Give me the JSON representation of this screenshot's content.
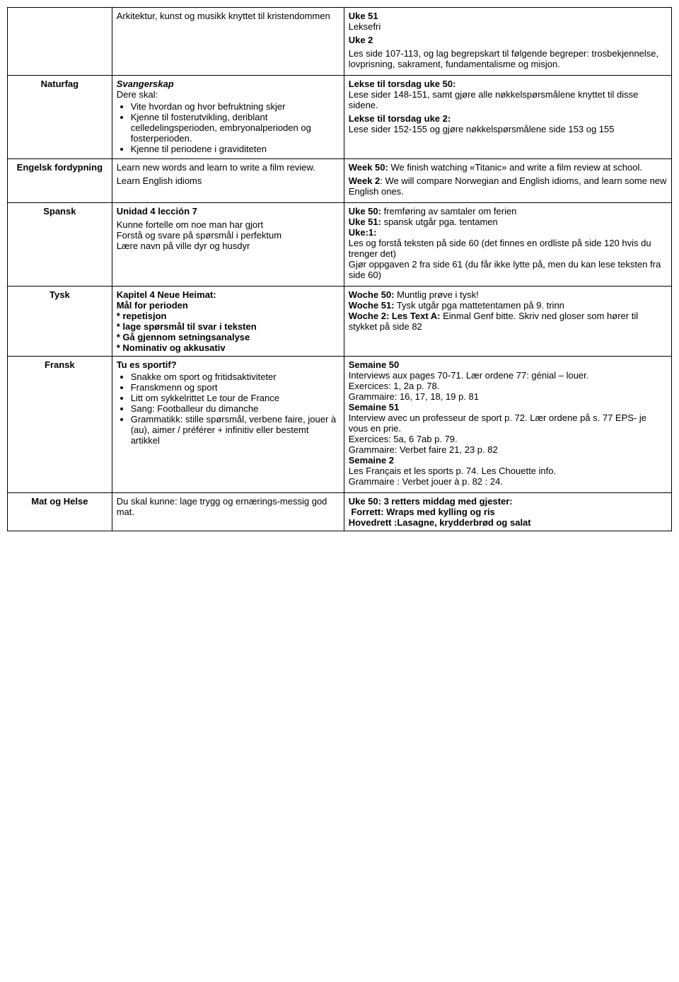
{
  "rows": [
    {
      "subject": "",
      "col2_html": "Arkitektur, kunst og musikk knyttet til kristendommen",
      "col3_html": "<p><span class='b'>Uke 51</span><br>Leksefri</p><p class='b'>Uke 2</p><p>Les side 107-113, og lag begrepskart til følgende begreper: trosbekjennelse, lovprisning, sakrament, fundamentalisme og misjon.</p>"
    },
    {
      "subject": "Naturfag",
      "col2_html": "<span class='b i'>Svangerskap</span><br>Dere skal:<ul><li>Vite hvordan og hvor befruktning skjer</li><li>Kjenne til fosterutvikling, deriblant celledelingsperioden, embryonalperioden og fosterperioden.</li><li>Kjenne til periodene i graviditeten</li></ul>",
      "col3_html": "<p><span class='b'>Lekse til torsdag uke 50:</span><br>Lese sider 148-151, samt gjøre alle nøkkelspørsmålene knyttet til disse sidene.</p><p><span class='b'>Lekse til torsdag uke 2:</span><br>Lese sider 152-155 og gjøre nøkkelspørsmålene side 153 og 155</p>"
    },
    {
      "subject": "Engelsk fordypning",
      "col2_html": "<p>Learn new words and learn to write a film review.</p><p>Learn English idioms</p>",
      "col3_html": "<p><span class='b'>Week 50:</span> We finish watching «Titanic» and write a film review at school.</p><p><span class='b'>Week 2</span>: We will compare Norwegian and English idioms, and learn some new English ones.</p>"
    },
    {
      "subject": "Spansk",
      "col2_html": "<p class='b'>Unidad 4 lección 7</p><p>Kunne fortelle om noe man har gjort<br>Forstå og svare på spørsmål i perfektum<br>Lære navn på ville dyr og husdyr</p>",
      "col3_html": "<p><span class='b'>Uke 50:</span> fremføring av samtaler om ferien<br><span class='b'>Uke 51:</span> spansk utgår pga. tentamen<br><span class='b'>Uke:1:</span><br>Les og forstå teksten på side 60 (det finnes en ordliste på side 120 hvis du trenger det)<br>Gjør oppgaven 2 fra side 61 (du får ikke lytte på, men du kan lese teksten fra side 60)</p>"
    },
    {
      "subject": "Tysk",
      "col2_html": "<span class='b'>Kapitel 4 Neue Heimat:<br>Mål for perioden<br>* repetisjon<br>* lage spørsmål til svar i teksten<br>* Gå gjennom setningsanalyse<br>* Nominativ og akkusativ</span>",
      "col3_html": "<p><span class='b'>Woche 50:</span> Muntlig prøve i tysk!<br><span class='b'>Woche 51:</span> Tysk utgår pga mattetentamen på 9. trinn<br><span class='b'>Woche 2: Les Text A:</span> Einmal Genf bitte. Skriv ned gloser som hører til stykket på side 82</p>"
    },
    {
      "subject": "Fransk",
      "col2_html": "<span class='b'>Tu es sportif?</span><ul><li>Snakke om sport og fritidsaktiviteter</li><li>Franskmenn og sport</li><li>Litt om sykkelrittet Le tour de France</li><li>Sang: Footballeur du dimanche</li><li>Grammatikk: stille spørsmål, verbene faire, jouer à (au), aimer / préférer + infinitiv eller bestemt artikkel</li></ul>",
      "col3_html": "<p><span class='b'>Semaine 50</span><br>Interviews aux pages 70-71. Lær ordene 77: génial – louer.<br>Exercices: 1, 2a p. 78.<br>Grammaire: 16, 17, 18, 19 p. 81<br><span class='b'>Semaine 51</span><br>Interview avec un professeur de sport p. 72. Lær ordene på s. 77 EPS- je vous en prie.<br>Exercices: 5a, 6 7ab p. 79.<br>Grammaire: Verbet faire 21, 23 p. 82<br><span class='b'>Semaine 2</span><br>Les Français et les sports p. 74. Les Chouette info.<br>Grammaire : Verbet jouer à p. 82 : 24.</p>"
    },
    {
      "subject": "Mat og Helse",
      "col2_html": "Du skal kunne: lage trygg og ernærings-messig god mat.",
      "col3_html": "<span class='b'>Uke 50: 3 retters middag med gjester:<br>&nbsp;Forrett: Wraps med kylling og ris<br>Hovedrett :Lasagne, krydderbrød og salat</span>"
    }
  ]
}
